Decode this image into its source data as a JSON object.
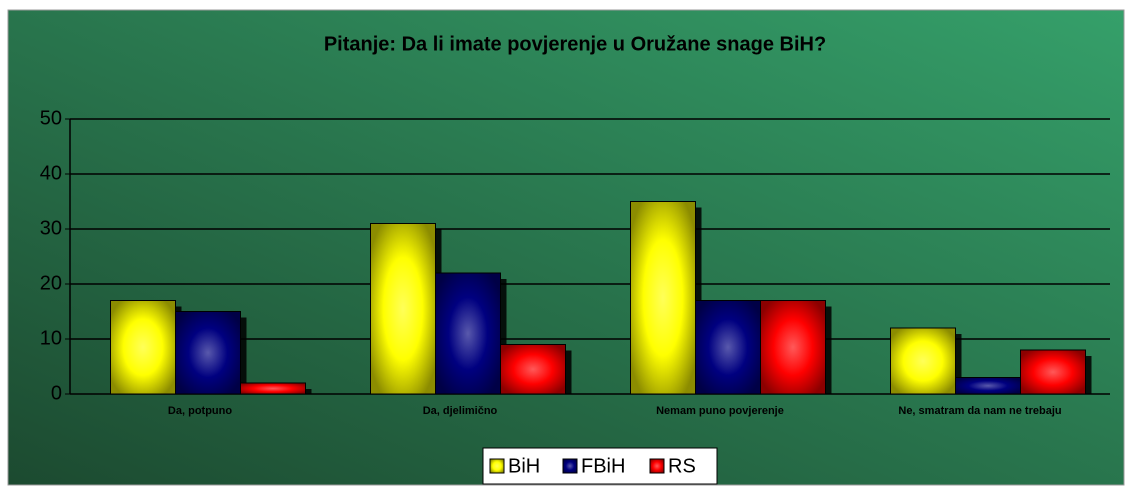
{
  "chart_data": {
    "type": "bar",
    "title": "Pitanje: Da li imate povjerenje u Oružane snage BiH?",
    "categories": [
      "Da, potpuno",
      "Da, djelimično",
      "Nemam puno povjerenje",
      "Ne, smatram da nam ne trebaju"
    ],
    "series": [
      {
        "name": "BiH",
        "color": "#ffff00",
        "values": [
          17,
          31,
          35,
          12
        ]
      },
      {
        "name": "FBiH",
        "color": "#000080",
        "values": [
          15,
          22,
          17,
          3
        ]
      },
      {
        "name": "RS",
        "color": "#ff0000",
        "values": [
          2,
          9,
          17,
          8
        ]
      }
    ],
    "ylim": [
      0,
      50
    ],
    "yticks": [
      0,
      10,
      20,
      30,
      40,
      50
    ],
    "grid": true,
    "legend": "bottom"
  }
}
